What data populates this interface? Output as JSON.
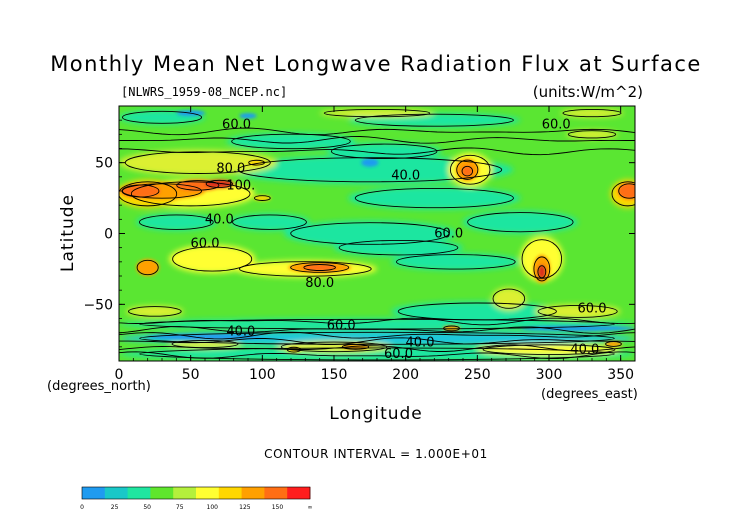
{
  "chart_data": {
    "type": "heatmap",
    "title": "Monthly Mean Net Longwave Radiation Flux at Surface",
    "file_label": "[NLWRS_1959-08_NCEP.nc]",
    "units_label": "(units:W/m^2)",
    "xlabel": "Longitude",
    "ylabel": "Latitude",
    "x_unit_label": "(degrees_east)",
    "y_unit_label": "(degrees_north)",
    "xlim": [
      0,
      360
    ],
    "ylim": [
      -90,
      90
    ],
    "x_ticks": [
      0,
      50,
      100,
      150,
      200,
      250,
      300,
      350
    ],
    "y_ticks": [
      -50,
      0,
      50
    ],
    "contour_interval_text": "CONTOUR INTERVAL = 1.000E+01",
    "contour_labels": [
      {
        "text": "60.0",
        "x": 82,
        "y": 77
      },
      {
        "text": "60.0",
        "x": 305,
        "y": 77
      },
      {
        "text": "40.0",
        "x": 200,
        "y": 41
      },
      {
        "text": "80.0",
        "x": 78,
        "y": 46
      },
      {
        "text": "100.",
        "x": 85,
        "y": 34
      },
      {
        "text": "40.0",
        "x": 70,
        "y": 10
      },
      {
        "text": "60.0",
        "x": 230,
        "y": 0
      },
      {
        "text": "60.0",
        "x": 60,
        "y": -7
      },
      {
        "text": "80.0",
        "x": 140,
        "y": -35
      },
      {
        "text": "60.0",
        "x": 330,
        "y": -53
      },
      {
        "text": "40.0",
        "x": 85,
        "y": -69
      },
      {
        "text": "60.0",
        "x": 155,
        "y": -65
      },
      {
        "text": "40.0",
        "x": 210,
        "y": -77
      },
      {
        "text": "60.0",
        "x": 195,
        "y": -85
      },
      {
        "text": "40.0",
        "x": 325,
        "y": -82
      }
    ],
    "colorbar": {
      "ticks": [
        "0",
        "25",
        "50",
        "75",
        "100",
        "125",
        "150",
        "∞"
      ],
      "colors": [
        "#1f9bf0",
        "#19c8c8",
        "#1fe6a0",
        "#5fe62d",
        "#b4f03c",
        "#ffff32",
        "#ffd700",
        "#ffa000",
        "#ff6e14",
        "#ff1e1e"
      ]
    },
    "field_colors": {
      "v20": "#1ec8dc",
      "v30": "#1fe6a0",
      "v45": "#5ae632",
      "v60": "#96e628",
      "v70": "#dcf032",
      "v80": "#ffff32",
      "v90": "#ffd700",
      "v100": "#ffa000",
      "v110": "#ff6e14",
      "v130": "#dc321e"
    }
  }
}
